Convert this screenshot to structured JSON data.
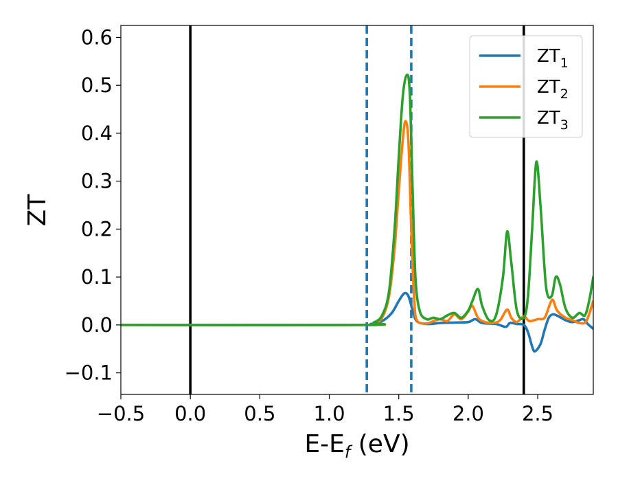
{
  "chart_data": {
    "type": "line",
    "xlabel": "E-E",
    "xlabel_sub": "f",
    "xlabel_unit": " (eV)",
    "ylabel": "ZT",
    "xlim": [
      -0.5,
      2.9
    ],
    "ylim": [
      -0.145,
      0.625
    ],
    "xticks": [
      {
        "value": -0.5,
        "label": "−0.5"
      },
      {
        "value": 0.0,
        "label": "0.0"
      },
      {
        "value": 0.5,
        "label": "0.5"
      },
      {
        "value": 1.0,
        "label": "1.0"
      },
      {
        "value": 1.5,
        "label": "1.5"
      },
      {
        "value": 2.0,
        "label": "2.0"
      },
      {
        "value": 2.5,
        "label": "2.5"
      }
    ],
    "yticks": [
      {
        "value": -0.1,
        "label": "−0.1"
      },
      {
        "value": 0.0,
        "label": "0.0"
      },
      {
        "value": 0.1,
        "label": "0.1"
      },
      {
        "value": 0.2,
        "label": "0.2"
      },
      {
        "value": 0.3,
        "label": "0.3"
      },
      {
        "value": 0.4,
        "label": "0.4"
      },
      {
        "value": 0.5,
        "label": "0.5"
      },
      {
        "value": 0.6,
        "label": "0.6"
      }
    ],
    "grid": false,
    "legend_position": "top-right",
    "vlines": [
      {
        "x": 0.0,
        "style": "solid",
        "color": "#000000"
      },
      {
        "x": 2.4,
        "style": "solid",
        "color": "#000000"
      },
      {
        "x": 1.27,
        "style": "dashed",
        "color": "#1f77b4"
      },
      {
        "x": 1.59,
        "style": "dashed",
        "color": "#1f77b4"
      }
    ],
    "series": [
      {
        "name": "ZT",
        "name_sub": "1",
        "color": "#1f77b4",
        "points": [
          [
            -0.5,
            0
          ],
          [
            1.2,
            0
          ],
          [
            1.3,
            0.002
          ],
          [
            1.38,
            0.008
          ],
          [
            1.45,
            0.025
          ],
          [
            1.5,
            0.05
          ],
          [
            1.54,
            0.066
          ],
          [
            1.57,
            0.06
          ],
          [
            1.6,
            0.03
          ],
          [
            1.63,
            0.008
          ],
          [
            1.7,
            0.002
          ],
          [
            1.8,
            0.004
          ],
          [
            1.9,
            0.005
          ],
          [
            2.0,
            0.006
          ],
          [
            2.05,
            0.012
          ],
          [
            2.1,
            0.004
          ],
          [
            2.2,
            0.002
          ],
          [
            2.27,
            -0.004
          ],
          [
            2.3,
            0.004
          ],
          [
            2.35,
            0.002
          ],
          [
            2.4,
            0
          ],
          [
            2.43,
            -0.015
          ],
          [
            2.46,
            -0.045
          ],
          [
            2.48,
            -0.055
          ],
          [
            2.52,
            -0.04
          ],
          [
            2.55,
            -0.01
          ],
          [
            2.58,
            0.015
          ],
          [
            2.61,
            0.022
          ],
          [
            2.65,
            0.018
          ],
          [
            2.7,
            0.01
          ],
          [
            2.75,
            0.006
          ],
          [
            2.8,
            0.01
          ],
          [
            2.83,
            0.012
          ],
          [
            2.86,
            0.002
          ],
          [
            2.9,
            -0.008
          ]
        ]
      },
      {
        "name": "ZT",
        "name_sub": "2",
        "color": "#ff7f0e",
        "points": [
          [
            -0.5,
            0
          ],
          [
            1.25,
            0
          ],
          [
            1.32,
            0.003
          ],
          [
            1.38,
            0.015
          ],
          [
            1.43,
            0.06
          ],
          [
            1.47,
            0.16
          ],
          [
            1.5,
            0.28
          ],
          [
            1.53,
            0.39
          ],
          [
            1.55,
            0.425
          ],
          [
            1.57,
            0.38
          ],
          [
            1.59,
            0.2
          ],
          [
            1.61,
            0.06
          ],
          [
            1.63,
            0.01
          ],
          [
            1.7,
            0.003
          ],
          [
            1.75,
            0.008
          ],
          [
            1.8,
            0.012
          ],
          [
            1.85,
            0.008
          ],
          [
            1.9,
            0.022
          ],
          [
            1.95,
            0.012
          ],
          [
            2.0,
            0.028
          ],
          [
            2.03,
            0.04
          ],
          [
            2.07,
            0.015
          ],
          [
            2.12,
            0.006
          ],
          [
            2.18,
            0.004
          ],
          [
            2.23,
            0.01
          ],
          [
            2.28,
            0.032
          ],
          [
            2.31,
            0.015
          ],
          [
            2.35,
            0.006
          ],
          [
            2.4,
            0.018
          ],
          [
            2.44,
            0.008
          ],
          [
            2.5,
            0.012
          ],
          [
            2.55,
            0.015
          ],
          [
            2.59,
            0.045
          ],
          [
            2.61,
            0.052
          ],
          [
            2.64,
            0.03
          ],
          [
            2.7,
            0.015
          ],
          [
            2.75,
            0.01
          ],
          [
            2.8,
            0.004
          ],
          [
            2.85,
            0.008
          ],
          [
            2.9,
            0.05
          ]
        ]
      },
      {
        "name": "ZT",
        "name_sub": "3",
        "color": "#2ca02c",
        "points": [
          [
            -0.5,
            0
          ],
          [
            1.25,
            0
          ],
          [
            1.32,
            0.005
          ],
          [
            1.38,
            0.02
          ],
          [
            1.43,
            0.07
          ],
          [
            1.47,
            0.2
          ],
          [
            1.5,
            0.35
          ],
          [
            1.53,
            0.48
          ],
          [
            1.56,
            0.522
          ],
          [
            1.58,
            0.48
          ],
          [
            1.6,
            0.28
          ],
          [
            1.62,
            0.1
          ],
          [
            1.65,
            0.03
          ],
          [
            1.7,
            0.012
          ],
          [
            1.75,
            0.015
          ],
          [
            1.8,
            0.012
          ],
          [
            1.85,
            0.02
          ],
          [
            1.9,
            0.025
          ],
          [
            1.95,
            0.015
          ],
          [
            2.0,
            0.03
          ],
          [
            2.03,
            0.05
          ],
          [
            2.07,
            0.075
          ],
          [
            2.1,
            0.04
          ],
          [
            2.15,
            0.01
          ],
          [
            2.2,
            0.02
          ],
          [
            2.25,
            0.1
          ],
          [
            2.28,
            0.195
          ],
          [
            2.31,
            0.13
          ],
          [
            2.35,
            0.03
          ],
          [
            2.4,
            0.015
          ],
          [
            2.43,
            0.06
          ],
          [
            2.46,
            0.2
          ],
          [
            2.49,
            0.34
          ],
          [
            2.52,
            0.25
          ],
          [
            2.56,
            0.08
          ],
          [
            2.6,
            0.06
          ],
          [
            2.63,
            0.1
          ],
          [
            2.66,
            0.085
          ],
          [
            2.7,
            0.035
          ],
          [
            2.75,
            0.015
          ],
          [
            2.8,
            0.025
          ],
          [
            2.84,
            0.02
          ],
          [
            2.87,
            0.05
          ],
          [
            2.9,
            0.1
          ]
        ]
      }
    ]
  }
}
